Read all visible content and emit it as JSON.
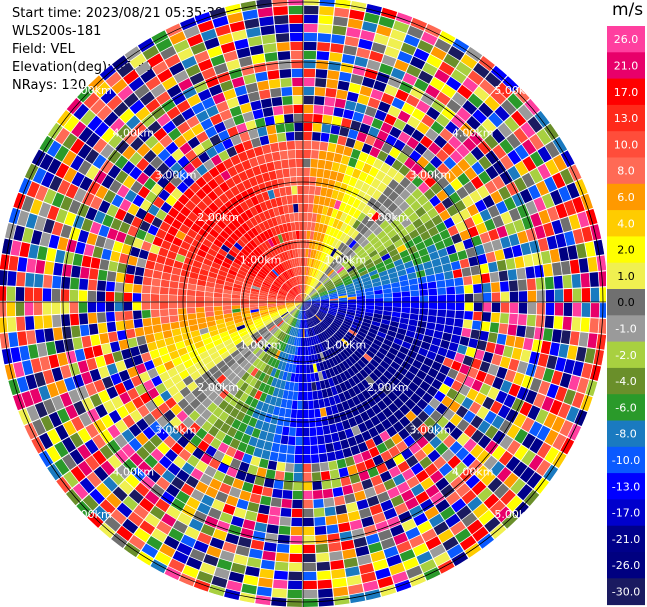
{
  "header": {
    "start_time": "Start time: 2023/08/21 05:35:39",
    "instrument": "WLS200s-181",
    "field": "Field: VEL",
    "elevation": "Elevation(deg): 35.30",
    "nrays": "NRays: 120"
  },
  "colorbar": {
    "unit": "m/s",
    "ticks": [
      "26.0",
      "21.0",
      "17.0",
      "13.0",
      "10.0",
      "8.0",
      "6.0",
      "4.0",
      "2.0",
      "1.0",
      "0.0",
      "-1.0",
      "-2.0",
      "-4.0",
      "-6.0",
      "-8.0",
      "-10.0",
      "-13.0",
      "-17.0",
      "-21.0",
      "-26.0",
      "-30.0"
    ],
    "colors": [
      "#ff3f9f",
      "#e8006a",
      "#ff0000",
      "#ff2a1a",
      "#ff4d3a",
      "#ff6a55",
      "#ff9900",
      "#ffcc00",
      "#ffff00",
      "#f0f050",
      "#707070",
      "#9a9a9a",
      "#a8d040",
      "#6a8f2a",
      "#2a9a2a",
      "#1a7ac0",
      "#0a5aff",
      "#0000ff",
      "#0000cc",
      "#00008a",
      "#000080",
      "#1a1a60"
    ]
  },
  "chart_data": {
    "type": "ppi",
    "field": "VEL",
    "units": "m/s",
    "vmin": -30.0,
    "vmax": 26.0,
    "range_rings_km": [
      1.0,
      2.0,
      3.0,
      4.0,
      5.0
    ],
    "ring_labels": [
      "1.00km",
      "2.00km",
      "3.00km",
      "4.00km",
      "5.00km"
    ],
    "nrays": 120,
    "structure": {
      "coherent_max_range_km": 2.6,
      "toward_sector": "north-west (red/pink, positive)",
      "away_sector": "south-east (blue, negative)",
      "zero_line": "south-west to north-east",
      "beyond_range": "noise"
    }
  }
}
